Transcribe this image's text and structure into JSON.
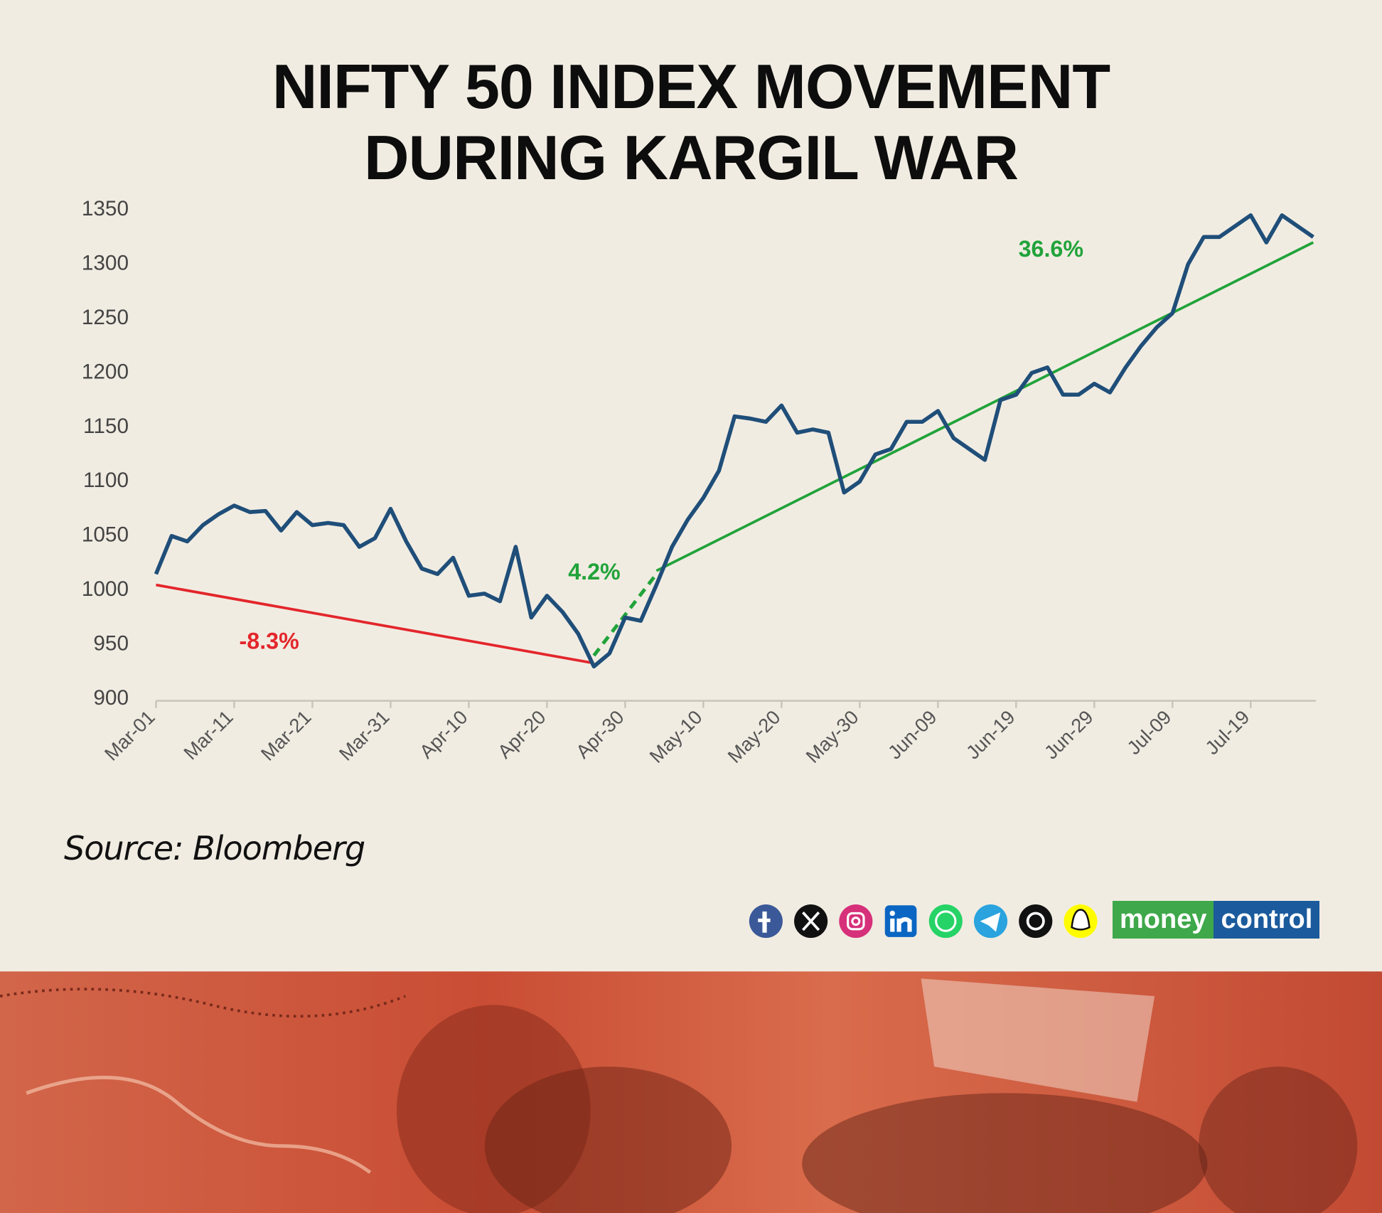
{
  "chart_data": {
    "type": "line",
    "title": "NIFTY 50 INDEX MOVEMENT DURING KARGIL WAR",
    "source": "Source: Bloomberg",
    "brand": {
      "part1": "money",
      "part2": "control"
    },
    "categories": [
      "Mar-01",
      null,
      null,
      null,
      null,
      "Mar-11",
      null,
      null,
      null,
      null,
      "Mar-21",
      null,
      null,
      null,
      null,
      "Mar-31",
      null,
      null,
      null,
      null,
      "Apr-10",
      null,
      null,
      null,
      null,
      "Apr-20",
      null,
      null,
      null,
      null,
      "Apr-30",
      null,
      null,
      null,
      null,
      "May-10",
      null,
      null,
      null,
      null,
      "May-20",
      null,
      null,
      null,
      null,
      "May-30",
      null,
      null,
      null,
      null,
      "Jun-09",
      null,
      null,
      null,
      null,
      "Jun-19",
      null,
      null,
      null,
      null,
      "Jun-29",
      null,
      null,
      null,
      null,
      "Jul-09",
      null,
      null,
      null,
      null,
      "Jul-19",
      null,
      null,
      null,
      null
    ],
    "values": [
      1015,
      1050,
      1045,
      1060,
      1070,
      1078,
      1072,
      1073,
      1055,
      1072,
      1060,
      1062,
      1060,
      1040,
      1048,
      1075,
      1045,
      1020,
      1015,
      1030,
      995,
      997,
      990,
      1040,
      975,
      995,
      980,
      960,
      930,
      942,
      975,
      972,
      1005,
      1040,
      1065,
      1085,
      1110,
      1160,
      1158,
      1155,
      1170,
      1145,
      1148,
      1145,
      1090,
      1100,
      1125,
      1130,
      1155,
      1155,
      1165,
      1140,
      1130,
      1120,
      1175,
      1180,
      1200,
      1205,
      1180,
      1180,
      1190,
      1182,
      1205,
      1225,
      1242,
      1255,
      1300,
      1325,
      1325,
      1335,
      1345,
      1320,
      1345,
      1335,
      1325
    ],
    "color": "#1f4e79",
    "ylim": [
      900,
      1350
    ],
    "yticks": [
      900,
      950,
      1000,
      1050,
      1100,
      1150,
      1200,
      1250,
      1300,
      1350
    ],
    "grid": false,
    "annotations": [
      {
        "text": "-8.3%",
        "color": "#e3262b",
        "dashed": false,
        "from": {
          "index": 0,
          "value": 1005
        },
        "to": {
          "index": 28,
          "value": 933
        }
      },
      {
        "text": "4.2%",
        "color": "#21a33a",
        "dashed": true,
        "from": {
          "index": 28,
          "value": 940
        },
        "to": {
          "index": 32,
          "value": 1015
        }
      },
      {
        "text": "36.6%",
        "color": "#21a33a",
        "dashed": false,
        "from": {
          "index": 32,
          "value": 1018
        },
        "to": {
          "index": 74,
          "value": 1320
        }
      }
    ]
  }
}
